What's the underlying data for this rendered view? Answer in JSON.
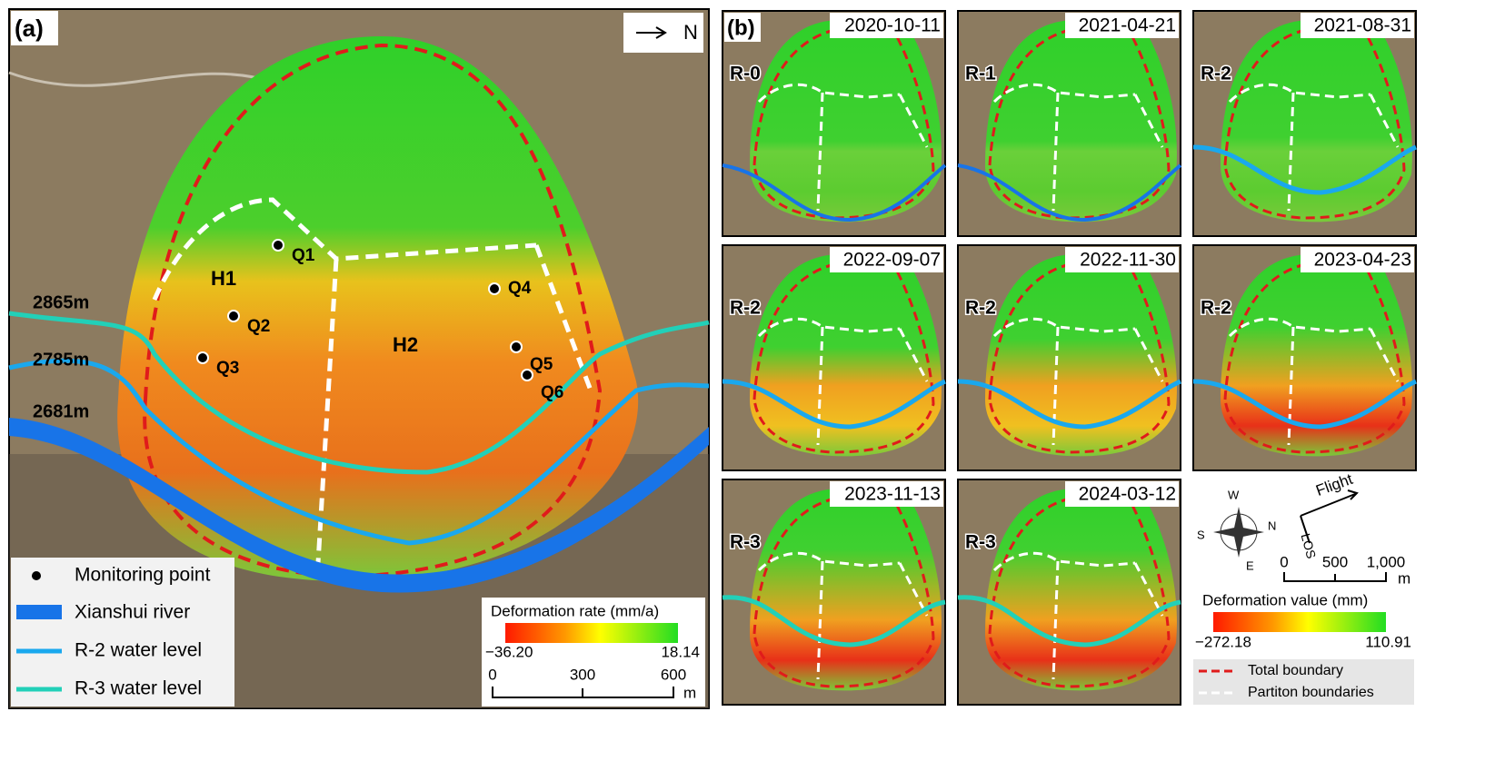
{
  "panel_a": {
    "label": "(a)",
    "north": "N",
    "points": [
      "Q1",
      "Q2",
      "Q3",
      "Q4",
      "Q5",
      "Q6"
    ],
    "zones": [
      "H1",
      "H2"
    ],
    "elevations": [
      "2865m",
      "2785m",
      "2681m"
    ],
    "legend": [
      "Monitoring point",
      "Xianshui river",
      "R-2 water level",
      "R-3 water level"
    ],
    "colorbar": {
      "title": "Deformation rate (mm/a)",
      "min": "−36.20",
      "max": "18.14"
    },
    "scale": {
      "ticks": [
        "0",
        "300",
        "600"
      ],
      "unit": "m"
    }
  },
  "panel_b": {
    "label": "(b)",
    "maps": [
      {
        "date": "2020-10-11",
        "stage": "R-0"
      },
      {
        "date": "2021-04-21",
        "stage": "R-1"
      },
      {
        "date": "2021-08-31",
        "stage": "R-2"
      },
      {
        "date": "2022-09-07",
        "stage": "R-2"
      },
      {
        "date": "2022-11-30",
        "stage": "R-2"
      },
      {
        "date": "2023-04-23",
        "stage": "R-2"
      },
      {
        "date": "2023-11-13",
        "stage": "R-3"
      },
      {
        "date": "2024-03-12",
        "stage": "R-3"
      }
    ],
    "compass": [
      "W",
      "S",
      "N",
      "E"
    ],
    "flight": "Flight",
    "los": "LOS",
    "scale": {
      "ticks": [
        "0",
        "500",
        "1,000"
      ],
      "unit": "m"
    },
    "colorbar": {
      "title": "Deformation value (mm)",
      "min": "−272.18",
      "max": "110.91"
    },
    "legend": [
      "Total boundary",
      "Partiton boundaries"
    ]
  }
}
